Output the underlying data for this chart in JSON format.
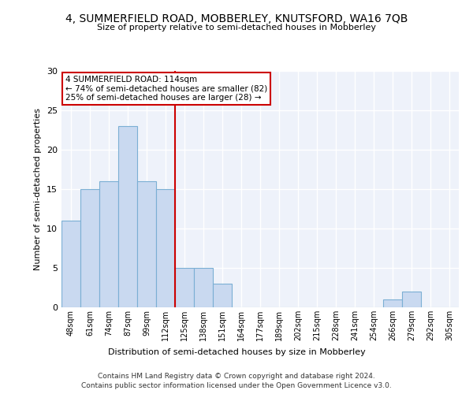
{
  "title1": "4, SUMMERFIELD ROAD, MOBBERLEY, KNUTSFORD, WA16 7QB",
  "title2": "Size of property relative to semi-detached houses in Mobberley",
  "xlabel": "Distribution of semi-detached houses by size in Mobberley",
  "ylabel": "Number of semi-detached properties",
  "bins": [
    "48sqm",
    "61sqm",
    "74sqm",
    "87sqm",
    "99sqm",
    "112sqm",
    "125sqm",
    "138sqm",
    "151sqm",
    "164sqm",
    "177sqm",
    "189sqm",
    "202sqm",
    "215sqm",
    "228sqm",
    "241sqm",
    "254sqm",
    "266sqm",
    "279sqm",
    "292sqm",
    "305sqm"
  ],
  "values": [
    11,
    15,
    16,
    23,
    16,
    15,
    5,
    5,
    3,
    0,
    0,
    0,
    0,
    0,
    0,
    0,
    0,
    1,
    2,
    0,
    0
  ],
  "bar_color": "#c9d9f0",
  "bar_edge_color": "#7bafd4",
  "vline_x_idx": 5,
  "vline_color": "#cc0000",
  "annotation_text": "4 SUMMERFIELD ROAD: 114sqm\n← 74% of semi-detached houses are smaller (82)\n25% of semi-detached houses are larger (28) →",
  "annotation_box_color": "#ffffff",
  "annotation_box_edge": "#cc0000",
  "ylim": [
    0,
    30
  ],
  "yticks": [
    0,
    5,
    10,
    15,
    20,
    25,
    30
  ],
  "background_color": "#eef2fa",
  "grid_color": "#ffffff",
  "footer1": "Contains HM Land Registry data © Crown copyright and database right 2024.",
  "footer2": "Contains public sector information licensed under the Open Government Licence v3.0."
}
